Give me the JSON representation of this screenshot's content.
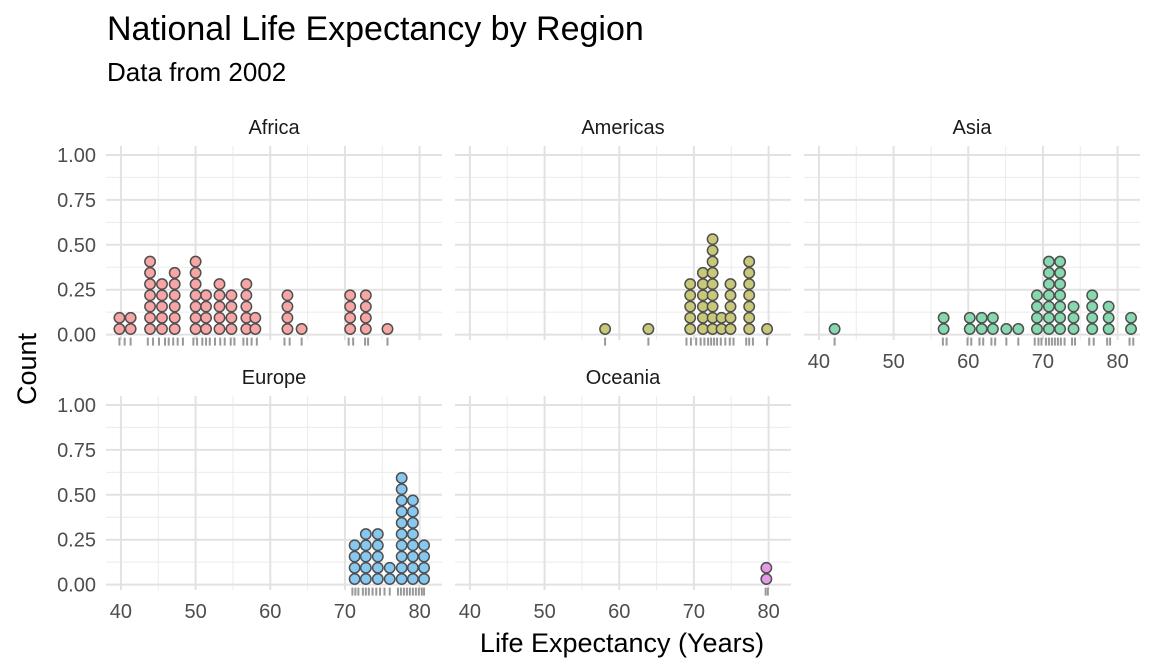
{
  "chart_data": {
    "type": "dotplot",
    "title": "National Life Expectancy by Region",
    "subtitle": "Data from 2002",
    "xlabel": "Life Expectancy (Years)",
    "ylabel": "Count",
    "xlim": [
      38,
      83
    ],
    "ylim": [
      -0.03,
      1.05
    ],
    "x_ticks": [
      40,
      50,
      60,
      70,
      80
    ],
    "y_ticks": [
      0.0,
      0.25,
      0.5,
      0.75,
      1.0
    ],
    "y_tick_labels": [
      "0.00",
      "0.25",
      "0.50",
      "0.75",
      "1.00"
    ],
    "x_tick_labels": [
      "40",
      "50",
      "60",
      "70",
      "80"
    ],
    "grid": true,
    "facets": [
      {
        "name": "Africa",
        "color": "#F8A5A5",
        "dots": [
          {
            "x": 39.8,
            "count": 2
          },
          {
            "x": 41.3,
            "count": 2
          },
          {
            "x": 43.9,
            "count": 7
          },
          {
            "x": 45.5,
            "count": 5
          },
          {
            "x": 47.2,
            "count": 6
          },
          {
            "x": 50.0,
            "count": 7
          },
          {
            "x": 51.4,
            "count": 4
          },
          {
            "x": 53.2,
            "count": 5
          },
          {
            "x": 54.8,
            "count": 4
          },
          {
            "x": 56.8,
            "count": 5
          },
          {
            "x": 58.0,
            "count": 2
          },
          {
            "x": 62.3,
            "count": 4
          },
          {
            "x": 64.2,
            "count": 1
          },
          {
            "x": 70.7,
            "count": 4
          },
          {
            "x": 72.8,
            "count": 4
          },
          {
            "x": 75.7,
            "count": 1
          }
        ],
        "rug": [
          39.8,
          40.5,
          41.3,
          43.6,
          44.3,
          45.1,
          45.9,
          46.4,
          47.0,
          47.6,
          48.3,
          49.7,
          50.2,
          50.9,
          51.4,
          51.9,
          52.6,
          53.3,
          53.9,
          54.7,
          55.2,
          56.4,
          56.9,
          57.5,
          58.2,
          61.9,
          62.6,
          64.2,
          70.5,
          71.1,
          72.7,
          73.1,
          75.7
        ]
      },
      {
        "name": "Americas",
        "color": "#C8C878",
        "dots": [
          {
            "x": 58.1,
            "count": 1
          },
          {
            "x": 63.9,
            "count": 1
          },
          {
            "x": 69.5,
            "count": 5
          },
          {
            "x": 71.2,
            "count": 6
          },
          {
            "x": 72.5,
            "count": 9
          },
          {
            "x": 73.7,
            "count": 2
          },
          {
            "x": 74.9,
            "count": 5
          },
          {
            "x": 77.4,
            "count": 7
          },
          {
            "x": 79.8,
            "count": 1
          }
        ],
        "rug": [
          58.1,
          63.9,
          69.0,
          69.6,
          70.3,
          70.9,
          71.4,
          71.9,
          72.3,
          72.7,
          73.1,
          73.6,
          74.2,
          74.8,
          75.3,
          77.0,
          77.4,
          77.9,
          79.8
        ]
      },
      {
        "name": "Asia",
        "color": "#86D9AE",
        "dots": [
          {
            "x": 42.1,
            "count": 1
          },
          {
            "x": 56.7,
            "count": 2
          },
          {
            "x": 60.2,
            "count": 2
          },
          {
            "x": 61.8,
            "count": 2
          },
          {
            "x": 63.3,
            "count": 2
          },
          {
            "x": 65.1,
            "count": 1
          },
          {
            "x": 66.7,
            "count": 1
          },
          {
            "x": 69.2,
            "count": 4
          },
          {
            "x": 70.8,
            "count": 7
          },
          {
            "x": 72.3,
            "count": 7
          },
          {
            "x": 74.1,
            "count": 3
          },
          {
            "x": 76.6,
            "count": 4
          },
          {
            "x": 78.8,
            "count": 3
          },
          {
            "x": 81.8,
            "count": 2
          }
        ],
        "rug": [
          42.1,
          56.6,
          57.1,
          59.9,
          60.4,
          61.5,
          62.0,
          63.1,
          63.6,
          65.1,
          66.7,
          68.9,
          69.4,
          69.8,
          70.4,
          70.8,
          71.2,
          71.6,
          72.0,
          72.4,
          72.9,
          73.9,
          74.3,
          76.2,
          76.8,
          78.6,
          79.0,
          81.6,
          82.1
        ]
      },
      {
        "name": "Europe",
        "color": "#86C8F0",
        "dots": [
          {
            "x": 71.3,
            "count": 4
          },
          {
            "x": 72.8,
            "count": 5
          },
          {
            "x": 74.4,
            "count": 5
          },
          {
            "x": 76.0,
            "count": 2
          },
          {
            "x": 77.6,
            "count": 10
          },
          {
            "x": 79.1,
            "count": 8
          },
          {
            "x": 80.6,
            "count": 4
          }
        ],
        "rug": [
          71.0,
          71.4,
          71.8,
          72.4,
          72.8,
          73.2,
          73.7,
          74.2,
          74.7,
          75.3,
          76.0,
          77.1,
          77.5,
          77.9,
          78.3,
          78.7,
          79.1,
          79.5,
          79.9,
          80.3,
          80.6
        ]
      },
      {
        "name": "Oceania",
        "color": "#E49AE6",
        "dots": [
          {
            "x": 79.7,
            "count": 2
          }
        ],
        "rug": [
          79.6,
          79.9
        ]
      }
    ],
    "dot_step": 0.0625,
    "dot_offset": 0.03125
  }
}
